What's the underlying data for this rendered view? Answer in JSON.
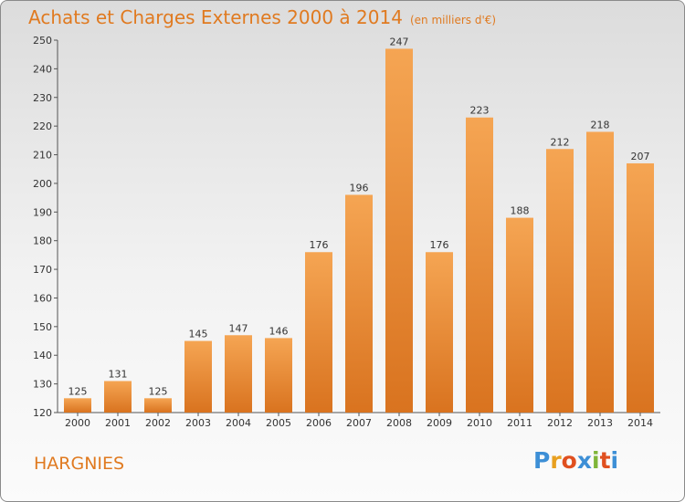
{
  "header": {
    "title": "Achats et Charges Externes 2000 à 2014",
    "subtitle": "(en milliers d'€)"
  },
  "place_name": "HARGNIES",
  "logo": {
    "text": "Proxiti",
    "letters": [
      "P",
      "r",
      "o",
      "x",
      "i",
      "t",
      "i"
    ],
    "colors": [
      "#3d8fd6",
      "#e8a020",
      "#e05020",
      "#3d8fd6",
      "#7fb539",
      "#e05020",
      "#3d8fd6"
    ]
  },
  "colors": {
    "title": "#e07a20",
    "bar_light": "#f5a553",
    "bar_dark": "#d9731f"
  },
  "chart_data": {
    "type": "bar",
    "categories": [
      "2000",
      "2001",
      "2002",
      "2003",
      "2004",
      "2005",
      "2006",
      "2007",
      "2008",
      "2009",
      "2010",
      "2011",
      "2012",
      "2013",
      "2014"
    ],
    "values": [
      125,
      131,
      125,
      145,
      147,
      146,
      176,
      196,
      247,
      176,
      223,
      188,
      212,
      218,
      207
    ],
    "yticks": [
      120,
      130,
      140,
      150,
      160,
      170,
      180,
      190,
      200,
      210,
      220,
      230,
      240,
      250
    ],
    "ylim": [
      120,
      250
    ],
    "grid": false,
    "title": "Achats et Charges Externes 2000 à 2014",
    "subtitle": "(en milliers d'€)"
  }
}
